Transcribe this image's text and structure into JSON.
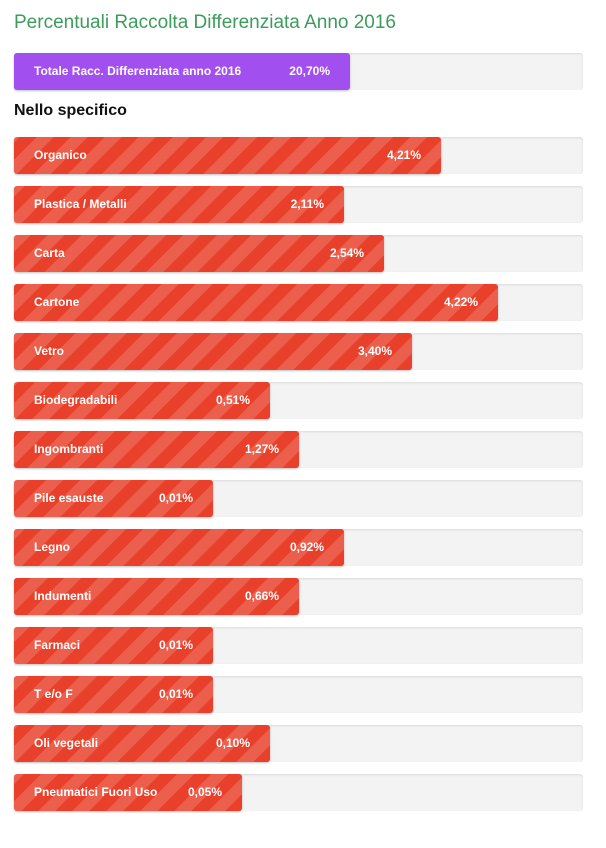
{
  "page": {
    "title": "Percentuali Raccolta Differenziata Anno 2016",
    "subtitle": "Nello specifico"
  },
  "colors": {
    "title": "#3d9b5c",
    "total_bar": "#a24ff0",
    "item_bar": "#e8402a",
    "track": "#f3f3f3"
  },
  "chart_data": [
    {
      "type": "bar",
      "orientation": "horizontal",
      "title": "Percentuali Raccolta Differenziata Anno 2016",
      "categories": [
        "Totale Racc. Differenziata anno 2016"
      ],
      "values": [
        20.7
      ],
      "value_labels": [
        "20,70%"
      ],
      "fill_fraction": [
        0.59
      ]
    },
    {
      "type": "bar",
      "orientation": "horizontal",
      "title": "Nello specifico",
      "categories": [
        "Organico",
        "Plastica / Metalli",
        "Carta",
        "Cartone",
        "Vetro",
        "Biodegradabili",
        "Ingombranti",
        "Pile esauste",
        "Legno",
        "Indumenti",
        "Farmaci",
        "T e/o F",
        "Oli vegetali",
        "Pneumatici Fuori Uso"
      ],
      "values": [
        4.21,
        2.11,
        2.54,
        4.22,
        3.4,
        0.51,
        1.27,
        0.01,
        0.92,
        0.66,
        0.01,
        0.01,
        0.1,
        0.05
      ],
      "value_labels": [
        "4,21%",
        "2,11%",
        "2,54%",
        "4,22%",
        "3,40%",
        "0,51%",
        "1,27%",
        "0,01%",
        "0,92%",
        "0,66%",
        "0,01%",
        "0,01%",
        "0,10%",
        "0,05%"
      ],
      "fill_fraction": [
        0.75,
        0.58,
        0.65,
        0.85,
        0.7,
        0.45,
        0.5,
        0.35,
        0.58,
        0.5,
        0.35,
        0.35,
        0.45,
        0.4
      ]
    }
  ]
}
